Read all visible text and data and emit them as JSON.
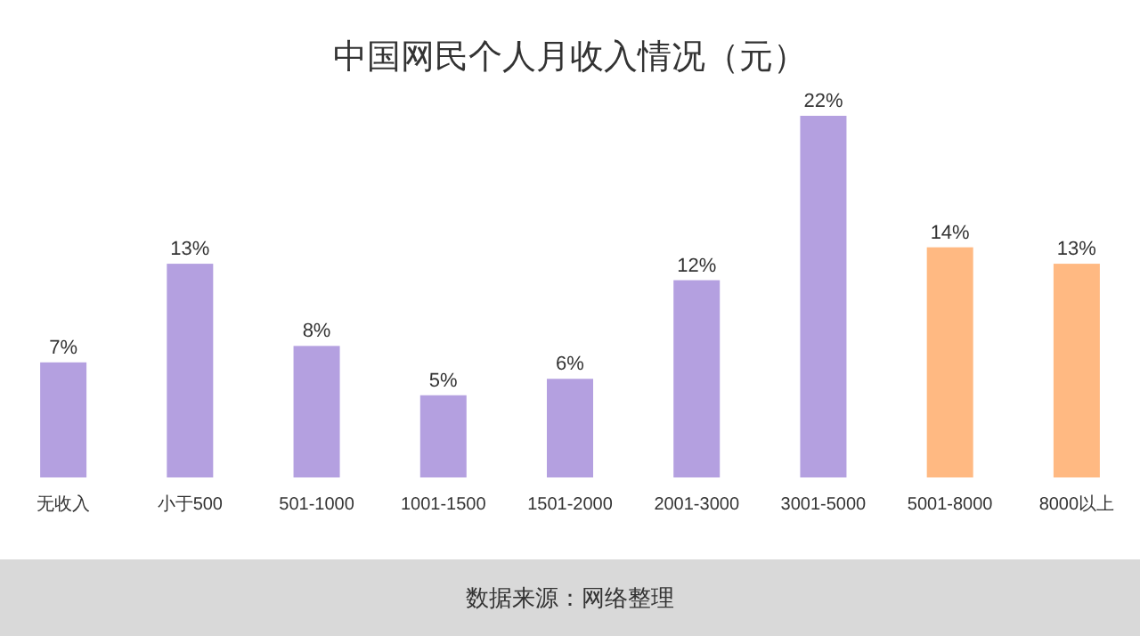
{
  "chart_data": {
    "type": "bar",
    "title": "中国网民个人月收入情况（元）",
    "categories": [
      "无收入",
      "小于500",
      "501-1000",
      "1001-1500",
      "1501-2000",
      "2001-3000",
      "3001-5000",
      "5001-8000",
      "8000以上"
    ],
    "values": [
      7,
      13,
      8,
      5,
      6,
      12,
      22,
      14,
      13
    ],
    "colors": [
      "#b4a0e0",
      "#b4a0e0",
      "#b4a0e0",
      "#b4a0e0",
      "#b4a0e0",
      "#b4a0e0",
      "#b4a0e0",
      "#ffb982",
      "#ffb982"
    ],
    "value_labels": [
      "7%",
      "13%",
      "8%",
      "5%",
      "6%",
      "12%",
      "22%",
      "14%",
      "13%"
    ],
    "annotations": [
      "数据来源：网络整理"
    ]
  }
}
